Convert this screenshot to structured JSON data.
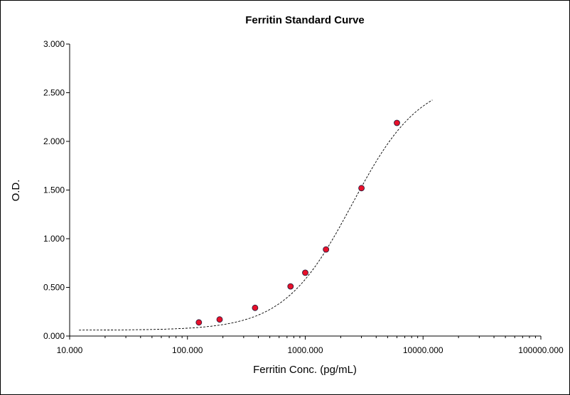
{
  "chart_data": {
    "type": "scatter",
    "title": "Ferritin Standard Curve",
    "xlabel": "Ferritin Conc. (pg/mL)",
    "ylabel": "O.D.",
    "x_scale": "log",
    "xlim": [
      10,
      100000
    ],
    "ylim": [
      0,
      3
    ],
    "x_ticks": [
      10,
      100,
      1000,
      10000,
      100000
    ],
    "x_tick_labels": [
      "10.000",
      "100.000",
      "1000.000",
      "10000.000",
      "100000.000"
    ],
    "y_ticks": [
      0,
      0.5,
      1,
      1.5,
      2,
      2.5,
      3
    ],
    "y_tick_labels": [
      "0.000",
      "0.500",
      "1.000",
      "1.500",
      "2.000",
      "2.500",
      "3.000"
    ],
    "grid": false,
    "series": [
      {
        "values": [
          {
            "x": 125,
            "y": 0.14
          },
          {
            "x": 187.5,
            "y": 0.17
          },
          {
            "x": 375,
            "y": 0.29
          },
          {
            "x": 750,
            "y": 0.51
          },
          {
            "x": 1000,
            "y": 0.65
          },
          {
            "x": 1500,
            "y": 0.89
          },
          {
            "x": 3000,
            "y": 1.52
          },
          {
            "x": 6000,
            "y": 2.19
          }
        ],
        "marker_color": "#e8102a",
        "marker_edge_color": "#1a1a3a"
      }
    ],
    "fit_curve": {
      "style": "dashed",
      "color": "#000000",
      "x_range": [
        12,
        12000
      ],
      "bottom": 0.06,
      "top": 2.65,
      "ec50": 2500,
      "slope": 1.5
    }
  }
}
